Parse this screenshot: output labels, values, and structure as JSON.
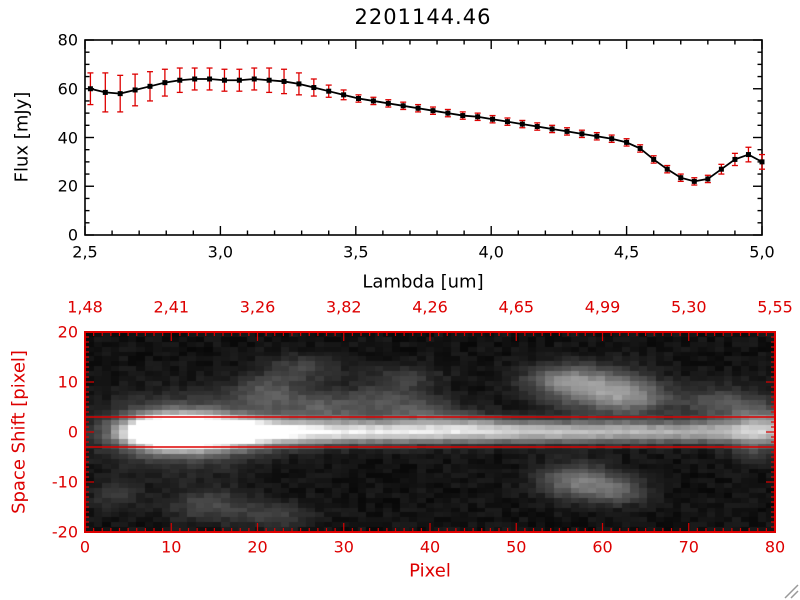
{
  "title": "2201144.46",
  "colors": {
    "accent_red": "#dd0000",
    "line_black": "#000000",
    "background": "#ffffff"
  },
  "top_plot": {
    "ylabel": "Flux [mJy]",
    "xlabel": "Lambda [um]",
    "y_tick_labels": [
      "0",
      "20",
      "40",
      "60",
      "80"
    ],
    "y_tick_values": [
      0,
      20,
      40,
      60,
      80
    ],
    "x_tick_labels": [
      "2,5",
      "3,0",
      "3,5",
      "4,0",
      "4,5",
      "5,0"
    ],
    "x_tick_values": [
      2.5,
      3.0,
      3.5,
      4.0,
      4.5,
      5.0
    ]
  },
  "bottom_plot": {
    "ylabel": "Space Shift [pixel]",
    "xlabel": "Pixel",
    "top_axis_tick_labels": [
      "1,48",
      "2,41",
      "3,26",
      "3,82",
      "4,26",
      "4,65",
      "4,99",
      "5,30",
      "5,55"
    ],
    "x_tick_labels": [
      "0",
      "10",
      "20",
      "30",
      "40",
      "50",
      "60",
      "70",
      "80"
    ],
    "x_tick_values": [
      0,
      10,
      20,
      30,
      40,
      50,
      60,
      70,
      80
    ],
    "y_tick_labels": [
      "20",
      "10",
      "0",
      "-10",
      "-20"
    ],
    "y_tick_values": [
      20,
      10,
      0,
      -10,
      -20
    ],
    "aperture_line_shifts": [
      3,
      -3
    ]
  },
  "chart_data": [
    {
      "type": "line",
      "title": "2201144.46",
      "xlabel": "Lambda [um]",
      "ylabel": "Flux [mJy]",
      "xlim": [
        2.5,
        5.0
      ],
      "ylim": [
        0,
        80
      ],
      "marker": "filled-square",
      "line_color": "#000000",
      "error_bar_color": "#dd0000",
      "x": [
        2.52,
        2.575,
        2.63,
        2.685,
        2.74,
        2.795,
        2.85,
        2.905,
        2.96,
        3.015,
        3.07,
        3.125,
        3.18,
        3.235,
        3.29,
        3.345,
        3.4,
        3.455,
        3.51,
        3.565,
        3.62,
        3.675,
        3.73,
        3.785,
        3.84,
        3.895,
        3.95,
        4.005,
        4.06,
        4.115,
        4.17,
        4.225,
        4.28,
        4.335,
        4.39,
        4.445,
        4.5,
        4.55,
        4.6,
        4.65,
        4.7,
        4.75,
        4.8,
        4.85,
        4.9,
        4.95,
        5.0
      ],
      "y": [
        60,
        58.5,
        58,
        59.5,
        61,
        62.5,
        63.5,
        64,
        64,
        63.5,
        63.5,
        64,
        63.5,
        63,
        62,
        60.5,
        59,
        57.5,
        56,
        55,
        54,
        53,
        52,
        51,
        50,
        49,
        48.5,
        47.5,
        46.5,
        45.5,
        44.5,
        43.5,
        42.5,
        41.5,
        40.5,
        39.5,
        38,
        35.5,
        31,
        27,
        23.5,
        22,
        23,
        27,
        31,
        33,
        30
      ],
      "yerr": [
        6.5,
        8,
        7.5,
        6.5,
        6,
        5.5,
        5,
        4.5,
        4.5,
        4.5,
        4.5,
        4.5,
        5,
        5,
        4.5,
        3.5,
        2.5,
        2,
        1.5,
        1.5,
        1.5,
        1.5,
        1.5,
        1.5,
        1.5,
        1.5,
        1.5,
        1.5,
        1.5,
        1.5,
        1.5,
        1.5,
        1.5,
        1.5,
        1.5,
        1.5,
        1.5,
        1.5,
        1.5,
        1.5,
        1.5,
        1.5,
        1.5,
        2,
        2.5,
        3,
        3
      ]
    },
    {
      "type": "heatmap",
      "xlabel": "Pixel",
      "ylabel": "Space Shift [pixel]",
      "xlim": [
        0,
        80
      ],
      "ylim": [
        -20,
        20
      ],
      "top_axis_lambda_values": [
        1.48,
        2.41,
        3.26,
        3.82,
        4.26,
        4.65,
        4.99,
        5.3,
        5.55
      ],
      "overlay_horizontal_lines_at_shift": [
        3,
        -3
      ],
      "palette": "grayscale-on-black",
      "noise": {
        "base": 8,
        "amp": 20
      },
      "blobs": [
        {
          "x": 8,
          "y": 0,
          "sx": 3,
          "sy": 2.0,
          "a": 255
        },
        {
          "x": 12,
          "y": 0,
          "sx": 4,
          "sy": 2.2,
          "a": 255
        },
        {
          "x": 11,
          "y": 0,
          "sx": 6,
          "sy": 4.5,
          "a": 110
        },
        {
          "x": 18,
          "y": 0,
          "sx": 5,
          "sy": 2.0,
          "a": 175
        },
        {
          "x": 26,
          "y": 0,
          "sx": 8,
          "sy": 1.8,
          "a": 110
        },
        {
          "x": 36,
          "y": 0,
          "sx": 10,
          "sy": 1.7,
          "a": 100
        },
        {
          "x": 48,
          "y": 0,
          "sx": 12,
          "sy": 1.6,
          "a": 85
        },
        {
          "x": 60,
          "y": 0,
          "sx": 12,
          "sy": 1.6,
          "a": 78
        },
        {
          "x": 72,
          "y": 0,
          "sx": 10,
          "sy": 1.6,
          "a": 72
        },
        {
          "x": 80,
          "y": 0,
          "sx": 6,
          "sy": 1.7,
          "a": 72
        },
        {
          "x": 21,
          "y": 8,
          "sx": 3,
          "sy": 2.5,
          "a": 70
        },
        {
          "x": 27,
          "y": 5,
          "sx": 3,
          "sy": 2,
          "a": 55
        },
        {
          "x": 25,
          "y": 13,
          "sx": 3,
          "sy": 2,
          "a": 50
        },
        {
          "x": 34,
          "y": 6,
          "sx": 4,
          "sy": 2.5,
          "a": 60
        },
        {
          "x": 37,
          "y": 11,
          "sx": 3,
          "sy": 2,
          "a": 40
        },
        {
          "x": 40,
          "y": 4,
          "sx": 3,
          "sy": 2,
          "a": 45
        },
        {
          "x": 45,
          "y": 2,
          "sx": 4,
          "sy": 1.5,
          "a": 40
        },
        {
          "x": 55,
          "y": 11,
          "sx": 3,
          "sy": 2,
          "a": 60
        },
        {
          "x": 59,
          "y": 9,
          "sx": 4,
          "sy": 3,
          "a": 115
        },
        {
          "x": 64,
          "y": 7,
          "sx": 3,
          "sy": 2.5,
          "a": 85
        },
        {
          "x": 57,
          "y": -10,
          "sx": 3,
          "sy": 2.5,
          "a": 100
        },
        {
          "x": 62,
          "y": -12,
          "sx": 2.5,
          "sy": 2,
          "a": 75
        },
        {
          "x": 74,
          "y": 6,
          "sx": 3.5,
          "sy": 2.5,
          "a": 65
        },
        {
          "x": 79,
          "y": 3,
          "sx": 2.5,
          "sy": 2,
          "a": 80
        },
        {
          "x": 78,
          "y": -3,
          "sx": 2,
          "sy": 2,
          "a": 55
        },
        {
          "x": 14,
          "y": -15,
          "sx": 3.5,
          "sy": 2.5,
          "a": 55
        },
        {
          "x": 22,
          "y": -17,
          "sx": 3,
          "sy": 2,
          "a": 45
        },
        {
          "x": 3,
          "y": -13,
          "sx": 2,
          "sy": 2,
          "a": 40
        }
      ]
    }
  ]
}
